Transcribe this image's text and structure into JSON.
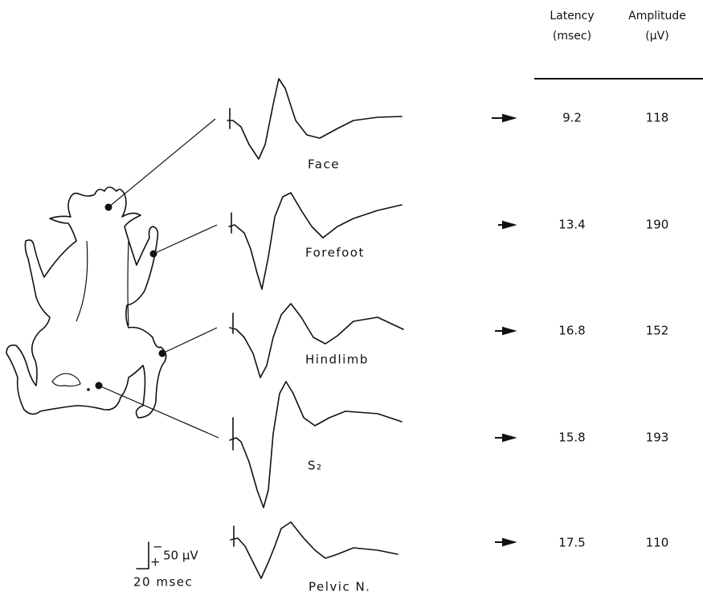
{
  "header": {
    "latency": [
      "Latency",
      "(msec)"
    ],
    "amplitude": [
      "Amplitude",
      "(µV)"
    ]
  },
  "rows": [
    {
      "label": "Face",
      "latency": "9.2",
      "amplitude": "118"
    },
    {
      "label": "Forefoot",
      "latency": "13.4",
      "amplitude": "190"
    },
    {
      "label": "Hindlimb",
      "latency": "16.8",
      "amplitude": "152"
    },
    {
      "label": "S₂",
      "latency": "15.8",
      "amplitude": "193"
    },
    {
      "label": "Pelvic N.",
      "latency": "17.5",
      "amplitude": "110"
    }
  ],
  "scale_bar": {
    "minus": "−",
    "plus": "+",
    "amplitude": "50 µV",
    "time": "20 msec"
  }
}
